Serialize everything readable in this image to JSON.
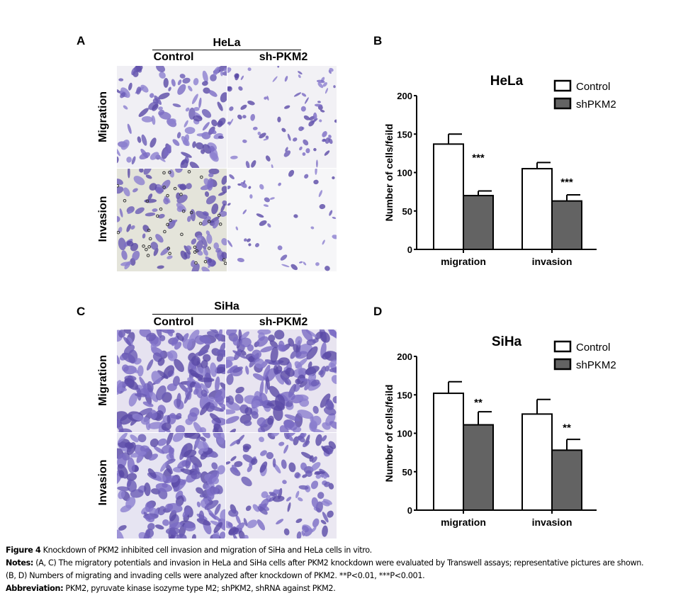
{
  "panels": {
    "A": {
      "letter": "A",
      "cell_line": "HeLa",
      "col_labels": [
        "Control",
        "sh-PKM2"
      ],
      "row_labels": [
        "Migration",
        "Invasion"
      ]
    },
    "C": {
      "letter": "C",
      "cell_line": "SiHa",
      "col_labels": [
        "Control",
        "sh-PKM2"
      ],
      "row_labels": [
        "Migration",
        "Invasion"
      ]
    },
    "B": {
      "letter": "B"
    },
    "D": {
      "letter": "D"
    }
  },
  "chart_data": [
    {
      "type": "bar",
      "title": "HeLa",
      "categories": [
        "migration",
        "invasion"
      ],
      "series": [
        {
          "name": "Control",
          "values": [
            137,
            105
          ],
          "errors": [
            13,
            8
          ],
          "color": "#ffffff"
        },
        {
          "name": "shPKM2",
          "values": [
            70,
            63
          ],
          "errors": [
            6,
            8
          ],
          "color": "#636363"
        }
      ],
      "significance": [
        "***",
        "***"
      ],
      "xlabel": "",
      "ylabel": "Number of cells/feild",
      "ylim": [
        0,
        200
      ],
      "yticks": [
        "0",
        "50",
        "100",
        "150",
        "200"
      ],
      "legend": "top-right",
      "grid": false
    },
    {
      "type": "bar",
      "title": "SiHa",
      "categories": [
        "migration",
        "invasion"
      ],
      "series": [
        {
          "name": "Control",
          "values": [
            152,
            125
          ],
          "errors": [
            15,
            19
          ],
          "color": "#ffffff"
        },
        {
          "name": "shPKM2",
          "values": [
            111,
            78
          ],
          "errors": [
            17,
            14
          ],
          "color": "#636363"
        }
      ],
      "significance": [
        "**",
        "**"
      ],
      "xlabel": "",
      "ylabel": "Number of cells/feild",
      "ylim": [
        0,
        200
      ],
      "yticks": [
        "0",
        "50",
        "100",
        "150",
        "200"
      ],
      "legend": "top-right",
      "grid": false
    }
  ],
  "caption": {
    "title_label": "Figure 4",
    "title_text": " Knockdown of PKM2 inhibited cell invasion and migration of SiHa and HeLa cells in vitro.",
    "notes_label": "Notes:",
    "notes_ac_ref": " (A, C)",
    "notes_ac_text": " The migratory potentials and invasion in HeLa and SiHa cells after PKM2 knockdown were evaluated by Transwell assays; representative pictures are shown.",
    "notes_bd_ref": "(B, D)",
    "notes_bd_text": " Numbers of migrating and invading cells were analyzed after knockdown of PKM2. **P<0.01, ***P<0.001.",
    "abbrev_label": "Abbreviation:",
    "abbrev_text": " PKM2, pyruvate kinase isozyme type M2; shPKM2, shRNA against PKM2."
  }
}
